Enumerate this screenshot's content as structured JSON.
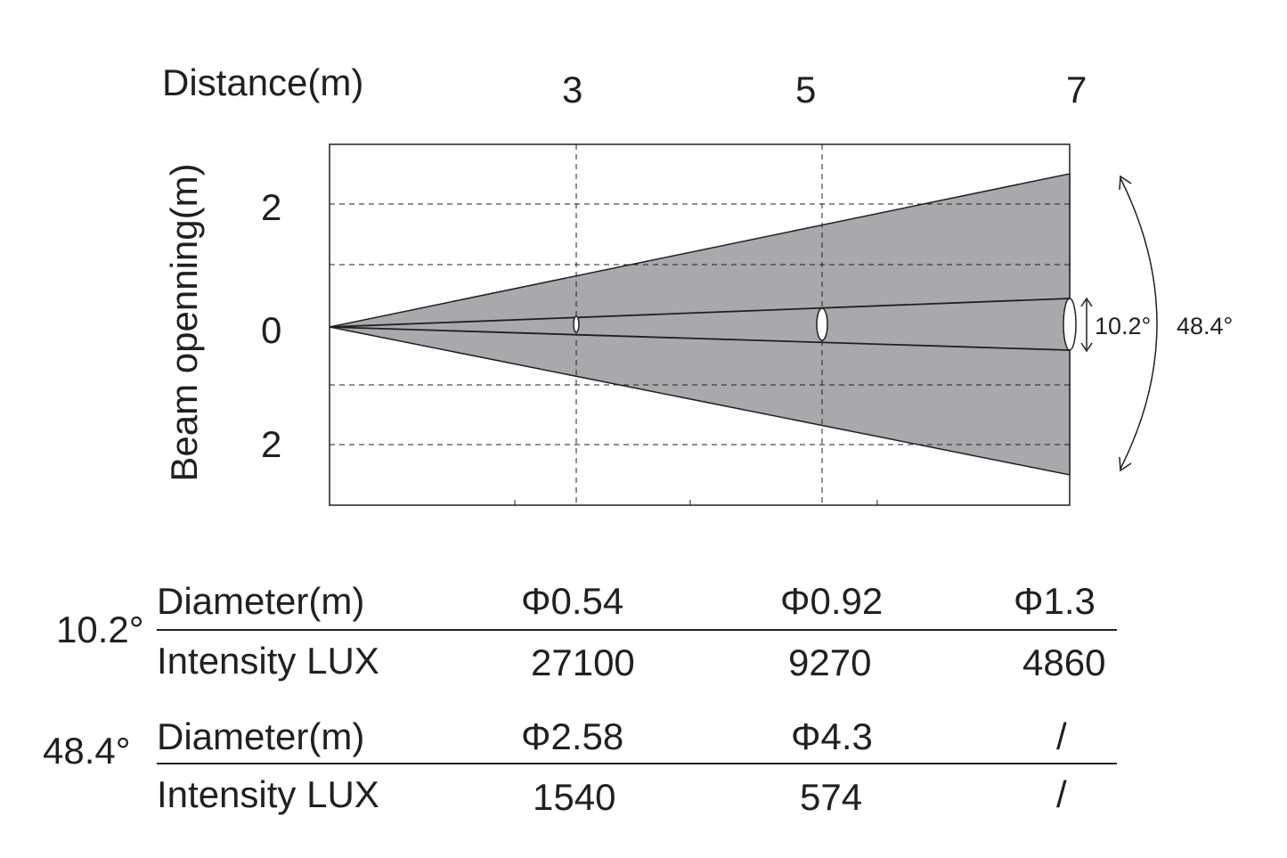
{
  "header": {
    "distance_label": "Distance(m)",
    "distance_ticks": [
      "3",
      "5",
      "7"
    ]
  },
  "y_axis": {
    "label": "Beam openning(m)",
    "ticks": [
      "2",
      "0",
      "2"
    ]
  },
  "angles": {
    "narrow": "10.2°",
    "wide": "48.4°"
  },
  "colors": {
    "beam_fill": "#a7a9ac",
    "line": "#231f20",
    "background": "#ffffff"
  },
  "table": {
    "groups": [
      {
        "angle": "10.2°",
        "rows": [
          {
            "label": "Diameter(m)",
            "values": [
              "Φ0.54",
              "Φ0.92",
              "Φ1.3"
            ]
          },
          {
            "label": "Intensity LUX",
            "values": [
              "27100",
              "9270",
              "4860"
            ]
          }
        ]
      },
      {
        "angle": "48.4°",
        "rows": [
          {
            "label": "Diameter(m)",
            "values": [
              "Φ2.58",
              "Φ4.3",
              "/"
            ]
          },
          {
            "label": "Intensity LUX",
            "values": [
              "1540",
              "574",
              "/"
            ]
          }
        ]
      }
    ]
  }
}
